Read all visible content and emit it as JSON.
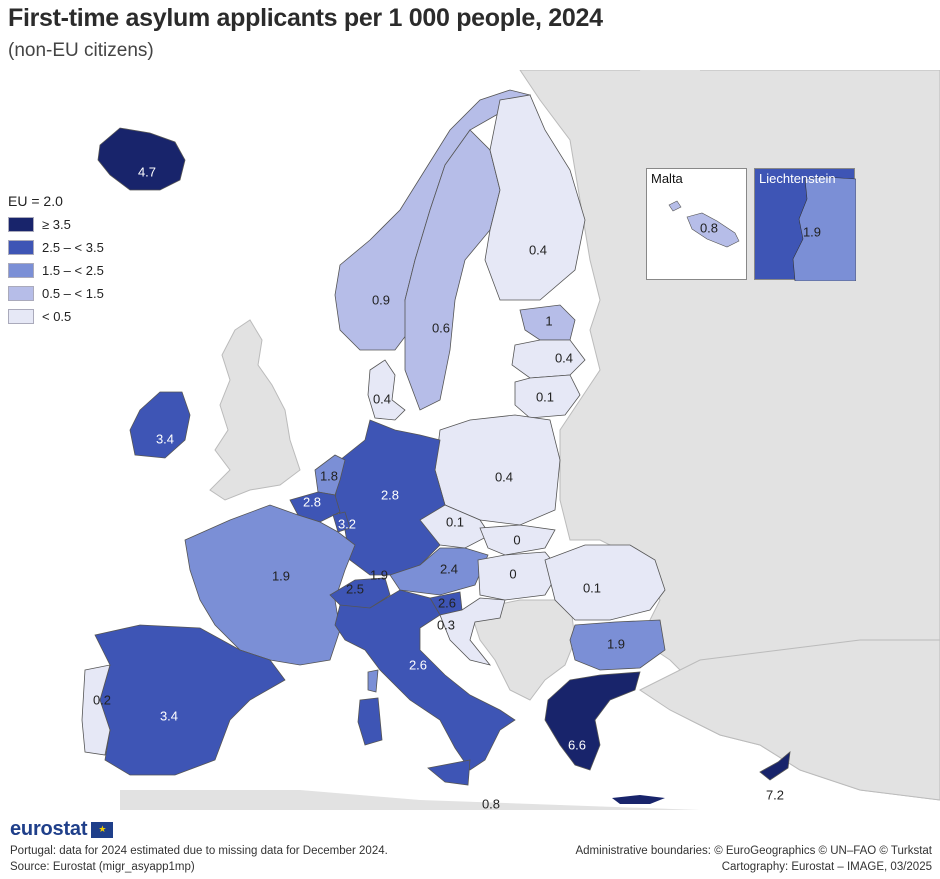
{
  "header": {
    "title": "First-time asylum applicants per 1 000 people, 2024",
    "subtitle": "(non-EU citizens)"
  },
  "legend": {
    "eu_value": "EU = 2.0",
    "classes": [
      {
        "label": "≥ 3.5",
        "color": "#18246b"
      },
      {
        "label": "2.5 – < 3.5",
        "color": "#3e55b5"
      },
      {
        "label": "1.5 – < 2.5",
        "color": "#7b8fd6"
      },
      {
        "label": "0.5 – < 1.5",
        "color": "#b6bde8"
      },
      {
        "label": "< 0.5",
        "color": "#e6e8f6"
      }
    ]
  },
  "colors": {
    "background_land": "#e2e2e2",
    "sea": "#ffffff",
    "border": "#555555"
  },
  "countries": {
    "iceland": "4.7",
    "norway": "0.9",
    "sweden": "0.6",
    "finland": "0.4",
    "estonia": "1",
    "latvia": "0.4",
    "lithuania": "0.1",
    "denmark": "0.4",
    "ireland": "3.4",
    "netherlands": "1.8",
    "belgium": "2.8",
    "luxembourg": "3.2",
    "germany": "2.8",
    "poland": "0.4",
    "czechia": "0.1",
    "slovakia": "0",
    "hungary": "0",
    "austria": "2.4",
    "switzerland": "2.5",
    "liechtenstein_main": "1.9",
    "slovenia": "2.6",
    "croatia": "0.3",
    "romania": "0.1",
    "bulgaria": "1.9",
    "greece": "6.6",
    "cyprus": "7.2",
    "italy": "2.6",
    "malta": "0.8",
    "france": "1.9",
    "spain": "3.4",
    "portugal": "0.2"
  },
  "insets": {
    "malta": {
      "title": "Malta",
      "value": "0.8"
    },
    "liechtenstein": {
      "title": "Liechtenstein",
      "value": "1.9"
    }
  },
  "footer": {
    "logo": "eurostat",
    "note": "Portugal: data for 2024 estimated due to missing data for December 2024.",
    "source": "Source: Eurostat (migr_asyapp1mp)",
    "boundaries": "Administrative boundaries: © EuroGeographics © UN–FAO © Turkstat",
    "cartography": "Cartography: Eurostat – IMAGE, 03/2025"
  }
}
